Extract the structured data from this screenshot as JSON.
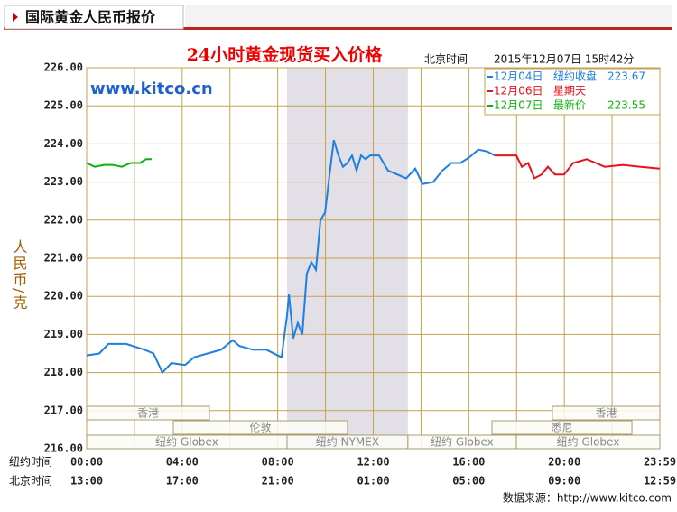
{
  "header": {
    "title": "国际黄金人民币报价"
  },
  "chart_data": {
    "type": "line",
    "title": "24小时黄金现货买入价格",
    "time_label": "北京时间",
    "datetime": "2015年12月07日 15时42分",
    "watermark": "www.kitco.cn",
    "ylabel": "人民币/克",
    "x_row_labels": [
      "纽约时间",
      "北京时间"
    ],
    "source": "数据来源：http://www.kitco.com",
    "xlim": [
      0,
      24
    ],
    "ylim": [
      216,
      226
    ],
    "yticks": [
      {
        "value": 216,
        "label": "216.00"
      },
      {
        "value": 217,
        "label": "217.00"
      },
      {
        "value": 218,
        "label": "218.00"
      },
      {
        "value": 219,
        "label": "219.00"
      },
      {
        "value": 220,
        "label": "220.00"
      },
      {
        "value": 221,
        "label": "221.00"
      },
      {
        "value": 222,
        "label": "222.00"
      },
      {
        "value": 223,
        "label": "223.00"
      },
      {
        "value": 224,
        "label": "224.00"
      },
      {
        "value": 225,
        "label": "225.00"
      },
      {
        "value": 226,
        "label": "226.00"
      }
    ],
    "xticks": [
      {
        "value": 0,
        "label": "00:00"
      },
      {
        "value": 4,
        "label": "04:00"
      },
      {
        "value": 8,
        "label": "08:00"
      },
      {
        "value": 12,
        "label": "12:00"
      },
      {
        "value": 16,
        "label": "16:00"
      },
      {
        "value": 20,
        "label": "20:00"
      },
      {
        "value": 24,
        "label": "23:59"
      }
    ],
    "xticks_beijing": [
      {
        "value": 0,
        "label": "13:00"
      },
      {
        "value": 4,
        "label": "17:00"
      },
      {
        "value": 8,
        "label": "21:00"
      },
      {
        "value": 12,
        "label": "01:00"
      },
      {
        "value": 16,
        "label": "05:00"
      },
      {
        "value": 20,
        "label": "09:00"
      },
      {
        "value": 24,
        "label": "12:59"
      }
    ],
    "xgrid": [
      0,
      2,
      4,
      6,
      8,
      10,
      12,
      14,
      16,
      18,
      20,
      22,
      24
    ],
    "grid": true,
    "highlight_range": [
      8.39,
      13.45
    ],
    "sessions": [
      {
        "label": "香港",
        "start": 0,
        "end": 5.14
      },
      {
        "label": "伦敦",
        "start": 3.63,
        "end": 10.92
      },
      {
        "label": "纽约 Globex",
        "start": 0,
        "end": 8.39
      },
      {
        "label": "纽约 NYMEX",
        "start": 8.39,
        "end": 13.45
      },
      {
        "label": "纽约 Globex",
        "start": 13.45,
        "end": 17.99
      },
      {
        "label": "香港",
        "start": 19.5,
        "end": 24
      },
      {
        "label": "悉尼",
        "start": 16.97,
        "end": 22.83
      },
      {
        "label": "纽约 Globex",
        "start": 17.99,
        "end": 24
      }
    ],
    "series": [
      {
        "name": "12月04日",
        "legend_note": "纽约收盘",
        "legend_value": 223.67,
        "color": "#1e7fe0",
        "x": [
          0,
          0.53,
          0.91,
          1.66,
          2.42,
          2.8,
          3.17,
          3.55,
          4.12,
          4.5,
          5.06,
          5.63,
          6.12,
          6.39,
          6.95,
          7.52,
          8.16,
          8.39,
          8.47,
          8.65,
          8.84,
          9.03,
          9.22,
          9.41,
          9.6,
          9.79,
          9.98,
          10.17,
          10.35,
          10.54,
          10.73,
          10.92,
          11.11,
          11.3,
          11.49,
          11.68,
          11.87,
          12.24,
          12.62,
          13.0,
          13.38,
          13.76,
          14.06,
          14.51,
          14.89,
          15.27,
          15.65,
          16.02,
          16.4,
          16.78,
          17.08
        ],
        "values": [
          218.45,
          218.5,
          218.75,
          218.75,
          218.6,
          218.5,
          218.0,
          218.25,
          218.2,
          218.4,
          218.5,
          218.6,
          218.85,
          218.7,
          218.6,
          218.6,
          218.4,
          219.5,
          220.05,
          218.9,
          219.3,
          219.0,
          220.6,
          220.9,
          220.7,
          222.0,
          222.2,
          223.2,
          224.1,
          223.7,
          223.4,
          223.5,
          223.7,
          223.3,
          223.7,
          223.6,
          223.7,
          223.7,
          223.3,
          223.2,
          223.1,
          223.35,
          222.95,
          223.0,
          223.3,
          223.5,
          223.5,
          223.65,
          223.85,
          223.8,
          223.7
        ]
      },
      {
        "name": "12月06日",
        "legend_note": "星期天",
        "color": "#e8101a",
        "x": [
          17.08,
          17.54,
          17.99,
          18.22,
          18.48,
          18.75,
          19.05,
          19.31,
          19.61,
          19.99,
          20.37,
          20.94,
          21.32,
          21.69,
          22.45,
          23.2,
          24
        ],
        "values": [
          223.7,
          223.7,
          223.7,
          223.4,
          223.5,
          223.1,
          223.2,
          223.4,
          223.2,
          223.2,
          223.5,
          223.6,
          223.5,
          223.4,
          223.45,
          223.4,
          223.35
        ]
      },
      {
        "name": "12月07日",
        "legend_note": "最新价",
        "legend_value": 223.55,
        "color": "#10b010",
        "x": [
          0,
          0.34,
          0.72,
          1.1,
          1.47,
          1.85,
          2.23,
          2.49,
          2.72
        ],
        "values": [
          223.5,
          223.4,
          223.45,
          223.45,
          223.4,
          223.5,
          223.5,
          223.6,
          223.6
        ]
      }
    ]
  }
}
